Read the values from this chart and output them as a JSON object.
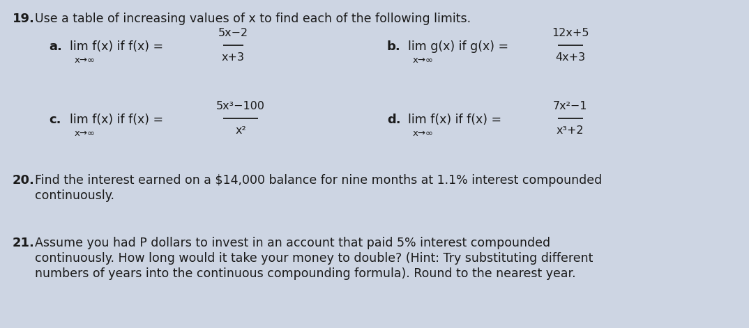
{
  "bg_color": "#cdd5e3",
  "text_color": "#1a1a1a",
  "figsize": [
    10.74,
    4.71
  ],
  "dpi": 100,
  "q19_header_num": "19.",
  "q19_header_text": "Use a table of increasing values of x to find each of the following limits.",
  "q19a_label": "a.",
  "q19a_text": "lim f(x) if f(x) =",
  "q19a_sub": "x→∞",
  "q19a_num": "5x−2",
  "q19a_den": "x+3",
  "q19b_label": "b.",
  "q19b_text": "lim g(x) if g(x) =",
  "q19b_sub": "x→∞",
  "q19b_num": "12x+5",
  "q19b_den": "4x+3",
  "q19c_label": "c.",
  "q19c_text": "lim f(x) if f(x) =",
  "q19c_sub": "x→∞",
  "q19c_num": "5x³−100",
  "q19c_den": "x²",
  "q19d_label": "d.",
  "q19d_text": "lim f(x) if f(x) =",
  "q19d_sub": "x→∞",
  "q19d_num": "7x²−1",
  "q19d_den": "x³+2",
  "q20_num": "20.",
  "q20_line1": "Find the interest earned on a $14,000 balance for nine months at 1.1% interest compounded",
  "q20_line2": "continuously.",
  "q21_num": "21.",
  "q21_line1": "Assume you had P dollars to invest in an account that paid 5% interest compounded",
  "q21_line2": "continuously. How long would it take your money to double? (Hint: Try substituting different",
  "q21_line3": "numbers of years into the continuous compounding formula). Round to the nearest year."
}
